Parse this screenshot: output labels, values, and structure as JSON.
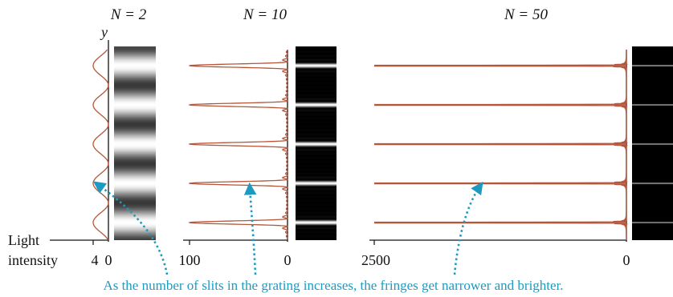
{
  "colors": {
    "curve": "#b5563a",
    "annotation": "#1e9ac0",
    "axis": "#111111",
    "stripe_dark": "#000000"
  },
  "y_axis_label": "y",
  "x_axis_label_line1": "Light",
  "x_axis_label_line2": "intensity",
  "caption": "As the number of slits in the grating increases, the fringes get narrower and brighter.",
  "panels": [
    {
      "title": "N = 2",
      "n": 2,
      "tick_max": "4",
      "tick_zero": "0",
      "max_intensity": 4
    },
    {
      "title": "N = 10",
      "n": 10,
      "tick_max": "100",
      "tick_zero": "0",
      "max_intensity": 100
    },
    {
      "title": "N = 50",
      "n": 50,
      "tick_max": "2500",
      "tick_zero": "0",
      "max_intensity": 2500
    }
  ]
}
